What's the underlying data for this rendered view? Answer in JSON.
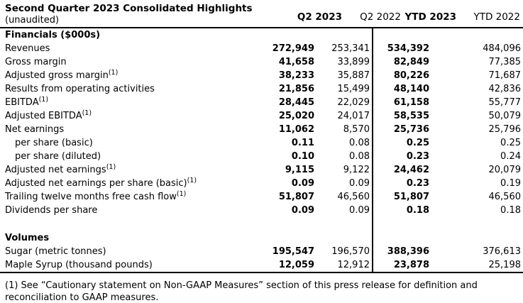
{
  "header": {
    "title": "Second Quarter 2023 Consolidated Highlights",
    "subtitle": "(unaudited)",
    "columns": [
      "Q2 2023",
      "Q2 2022",
      "YTD 2023",
      "YTD 2022"
    ]
  },
  "table": {
    "rows": [
      {
        "type": "section",
        "label": "Financials ($000s)"
      },
      {
        "label": "Revenues",
        "values": [
          "272,949",
          "253,341",
          "534,392",
          "484,096"
        ]
      },
      {
        "label": "Gross margin",
        "values": [
          "41,658",
          "33,899",
          "82,849",
          "77,385"
        ]
      },
      {
        "label": "Adjusted gross margin",
        "sup": "(1)",
        "values": [
          "38,233",
          "35,887",
          "80,226",
          "71,687"
        ]
      },
      {
        "label": "Results from operating activities",
        "values": [
          "21,856",
          "15,499",
          "48,140",
          "42,836"
        ]
      },
      {
        "label": "EBITDA",
        "sup": "(1)",
        "values": [
          "28,445",
          "22,029",
          "61,158",
          "55,777"
        ]
      },
      {
        "label": "Adjusted EBITDA",
        "sup": "(1)",
        "values": [
          "25,020",
          "24,017",
          "58,535",
          "50,079"
        ]
      },
      {
        "label": "Net earnings",
        "values": [
          "11,062",
          "8,570",
          "25,736",
          "25,796"
        ]
      },
      {
        "label": "per share (basic)",
        "indent": true,
        "values": [
          "0.11",
          "0.08",
          "0.25",
          "0.25"
        ]
      },
      {
        "label": "per share (diluted)",
        "indent": true,
        "values": [
          "0.10",
          "0.08",
          "0.23",
          "0.24"
        ]
      },
      {
        "label": "Adjusted net earnings",
        "sup": "(1)",
        "values": [
          "9,115",
          "9,122",
          "24,462",
          "20,079"
        ]
      },
      {
        "label": "Adjusted net earnings per share (basic)",
        "sup": "(1)",
        "values": [
          "0.09",
          "0.09",
          "0.23",
          "0.19"
        ]
      },
      {
        "label": "Trailing twelve months free cash flow",
        "sup": "(1)",
        "values": [
          "51,807",
          "46,560",
          "51,807",
          "46,560"
        ]
      },
      {
        "label": "Dividends per share",
        "values": [
          "0.09",
          "0.09",
          "0.18",
          "0.18"
        ]
      },
      {
        "type": "spacer"
      },
      {
        "type": "section",
        "label": "Volumes"
      },
      {
        "label": "Sugar (metric tonnes)",
        "values": [
          "195,547",
          "196,570",
          "388,396",
          "376,613"
        ]
      },
      {
        "label": "Maple Syrup (thousand pounds)",
        "values": [
          "12,059",
          "12,912",
          "23,878",
          "25,198"
        ]
      }
    ]
  },
  "footnote": {
    "text": "(1) See “Cautionary statement on Non-GAAP Measures” section of this press release for definition and reconciliation to GAAP measures."
  }
}
